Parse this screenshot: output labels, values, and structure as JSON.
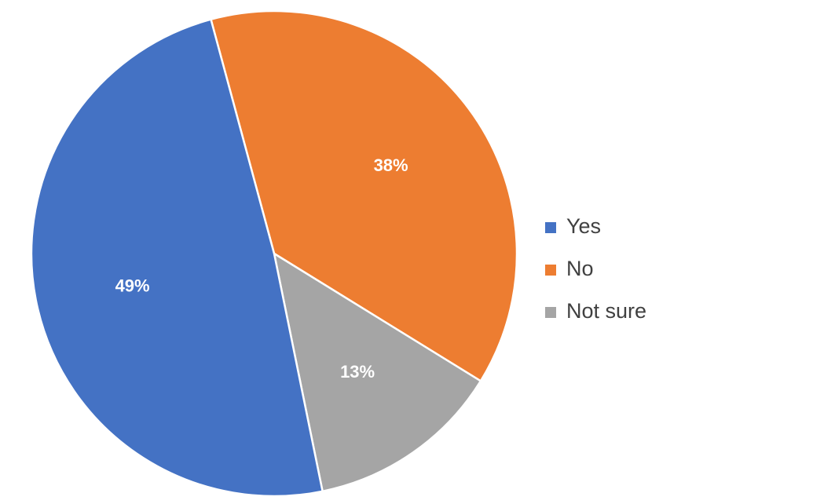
{
  "chart_data": {
    "type": "pie",
    "title": "",
    "categories": [
      "Yes",
      "No",
      "Not sure"
    ],
    "values": [
      49,
      38,
      13
    ],
    "data_labels": [
      "49%",
      "38%",
      "13%"
    ],
    "colors": [
      "#4472C4",
      "#ED7D31",
      "#A5A5A5"
    ],
    "legend_position": "right"
  }
}
